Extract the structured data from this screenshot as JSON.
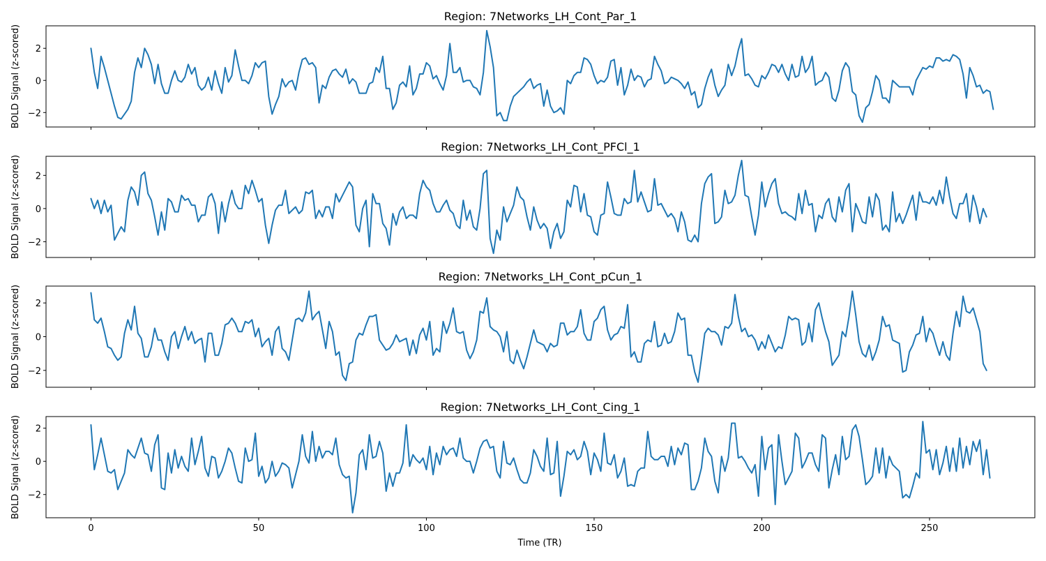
{
  "chart_data": {
    "type": "line",
    "xlabel": "Time (TR)",
    "x_ticks": [
      0,
      50,
      100,
      150,
      200,
      250
    ],
    "xlim": [
      -13.4,
      281.4
    ],
    "color": "#1f77b4",
    "panels": [
      {
        "title": "Region: 7Networks_LH_Cont_Par_1",
        "ylabel": "BOLD Signal (z-scored)",
        "ylim": [
          -2.9,
          3.4
        ],
        "y_ticks": [
          -2,
          0,
          2
        ],
        "y_tick_labels": [
          "−2",
          "0",
          "2"
        ],
        "values": [
          2.0,
          0.5,
          -0.5,
          1.5,
          0.8,
          0.0,
          -0.8,
          -1.6,
          -2.3,
          -2.4,
          -2.1,
          -1.8,
          -1.3,
          0.5,
          1.4,
          0.8,
          2.0,
          1.6,
          1.0,
          -0.2,
          1.0,
          -0.2,
          -0.8,
          -0.8,
          0.0,
          0.6,
          0.0,
          -0.1,
          0.2,
          1.0,
          0.4,
          0.8,
          -0.3,
          -0.6,
          -0.4,
          0.2,
          -0.6,
          0.6,
          -0.2,
          -0.8,
          0.8,
          -0.1,
          0.3,
          1.9,
          0.9,
          0.0,
          0.0,
          -0.2,
          0.3,
          1.1,
          0.8,
          1.1,
          1.2,
          -1.0,
          -2.1,
          -1.5,
          -1.0,
          0.1,
          -0.4,
          -0.1,
          0.0,
          -0.6,
          0.5,
          1.3,
          1.4,
          1.0,
          1.1,
          0.8,
          -1.4,
          -0.3,
          -0.5,
          0.2,
          0.6,
          0.7,
          0.4,
          0.2,
          0.7,
          -0.2,
          0.1,
          -0.1,
          -0.8,
          -0.8,
          -0.8,
          -0.2,
          -0.1,
          0.8,
          0.5,
          1.5,
          -0.5,
          -0.5,
          -1.8,
          -1.4,
          -0.3,
          -0.1,
          -0.4,
          0.9,
          -0.9,
          -0.5,
          0.4,
          0.4,
          1.1,
          0.9,
          0.1,
          0.3,
          -0.2,
          -0.6,
          0.3,
          2.3,
          0.5,
          0.5,
          0.8,
          -0.1,
          0.0,
          0.0,
          -0.4,
          -0.5,
          -0.9,
          0.5,
          3.1,
          2.1,
          0.8,
          -2.2,
          -2.0,
          -2.5,
          -2.5,
          -1.6,
          -1.0,
          -0.8,
          -0.6,
          -0.4,
          -0.1,
          0.1,
          -0.5,
          -0.3,
          -0.2,
          -1.6,
          -0.6,
          -1.6,
          -2.0,
          -1.9,
          -1.7,
          -2.1,
          0.0,
          -0.2,
          0.3,
          0.5,
          0.5,
          1.4,
          1.3,
          1.0,
          0.3,
          -0.2,
          0.0,
          -0.1,
          0.2,
          1.2,
          1.3,
          -0.3,
          0.8,
          -0.9,
          -0.3,
          0.7,
          0.0,
          0.3,
          0.2,
          -0.4,
          0.0,
          0.1,
          1.5,
          1.0,
          0.6,
          -0.2,
          -0.1,
          0.2,
          0.1,
          0.0,
          -0.2,
          -0.5,
          -0.1,
          -0.9,
          -0.7,
          -1.7,
          -1.5,
          -0.5,
          0.2,
          0.7,
          -0.3,
          -1.0,
          -0.6,
          -0.3,
          1.0,
          0.3,
          0.9,
          1.9,
          2.6,
          0.3,
          0.4,
          0.1,
          -0.3,
          -0.4,
          0.3,
          0.1,
          0.5,
          1.0,
          0.9,
          0.5,
          1.0,
          0.4,
          0.0,
          1.0,
          0.2,
          0.3,
          1.5,
          0.5,
          0.8,
          1.5,
          -0.3,
          -0.1,
          0.0,
          0.5,
          0.2,
          -1.1,
          -1.3,
          -0.6,
          0.6,
          1.1,
          0.8,
          -0.7,
          -0.9,
          -2.2,
          -2.6,
          -1.7,
          -1.5,
          -0.7,
          0.3,
          0.0,
          -1.1,
          -1.1,
          -1.4,
          0.0,
          -0.2,
          -0.4,
          -0.4,
          -0.4,
          -0.4,
          -0.9,
          0.0,
          0.4,
          0.8,
          0.7,
          0.9,
          0.8,
          1.4,
          1.4,
          1.2,
          1.3,
          1.2,
          1.6,
          1.5,
          1.3,
          0.4,
          -1.1,
          0.8,
          0.3,
          -0.4,
          -0.3,
          -0.8,
          -0.6,
          -0.7,
          -1.8
        ]
      },
      {
        "title": "Region: 7Networks_LH_Cont_PFCl_1",
        "ylabel": "BOLD Signal (z-scored)",
        "ylim": [
          -2.95,
          3.15
        ],
        "y_ticks": [
          -2,
          0,
          2
        ],
        "y_tick_labels": [
          "−2",
          "0",
          "2"
        ],
        "values": [
          0.6,
          0.0,
          0.5,
          -0.3,
          0.5,
          -0.2,
          0.2,
          -1.9,
          -1.5,
          -1.1,
          -1.4,
          0.5,
          1.3,
          1.0,
          0.2,
          2.0,
          2.2,
          0.9,
          0.5,
          -0.5,
          -1.6,
          -0.2,
          -1.3,
          0.6,
          0.4,
          -0.2,
          -0.2,
          0.8,
          0.5,
          0.6,
          0.2,
          0.2,
          -0.8,
          -0.4,
          -0.4,
          0.7,
          0.9,
          0.3,
          -1.5,
          0.4,
          -0.8,
          0.3,
          1.1,
          0.3,
          0.0,
          0.0,
          1.4,
          0.9,
          1.7,
          1.1,
          0.4,
          0.6,
          -1.0,
          -2.1,
          -1.0,
          -0.1,
          0.2,
          0.2,
          1.1,
          -0.3,
          -0.1,
          0.1,
          -0.3,
          -0.1,
          1.0,
          0.9,
          1.1,
          -0.6,
          -0.1,
          -0.5,
          0.1,
          0.1,
          -0.6,
          0.9,
          0.4,
          0.8,
          1.2,
          1.6,
          1.3,
          -1.0,
          -1.4,
          0.0,
          0.5,
          -2.3,
          0.9,
          0.3,
          0.3,
          -0.9,
          -1.2,
          -2.2,
          -0.3,
          -1.0,
          -0.2,
          0.1,
          -0.6,
          -0.4,
          -0.4,
          -0.6,
          0.9,
          1.7,
          1.3,
          1.1,
          0.3,
          -0.2,
          -0.2,
          0.2,
          0.5,
          -0.1,
          -0.3,
          -1.0,
          -1.2,
          0.5,
          -0.7,
          -0.1,
          -1.1,
          -1.3,
          0.0,
          2.1,
          2.3,
          -1.8,
          -2.7,
          -1.3,
          -1.9,
          0.1,
          -0.8,
          -0.3,
          0.2,
          1.3,
          0.7,
          0.5,
          -0.5,
          -1.3,
          0.1,
          -0.7,
          -1.2,
          -0.9,
          -1.2,
          -2.4,
          -1.4,
          -0.9,
          -1.8,
          -1.4,
          0.5,
          0.1,
          1.4,
          1.3,
          -0.2,
          0.9,
          -0.4,
          -0.5,
          -1.4,
          -1.6,
          -0.4,
          -0.3,
          1.6,
          0.7,
          -0.3,
          -0.4,
          -0.4,
          0.6,
          0.3,
          0.4,
          2.3,
          0.4,
          1.0,
          0.4,
          -0.2,
          -0.1,
          1.8,
          0.2,
          0.3,
          -0.1,
          -0.5,
          -0.3,
          -0.6,
          -1.4,
          -0.2,
          -0.8,
          -1.9,
          -2.0,
          -1.6,
          -2.0,
          0.3,
          1.5,
          1.9,
          2.1,
          -0.9,
          -0.8,
          -0.5,
          1.1,
          0.3,
          0.4,
          0.8,
          2.0,
          2.9,
          0.8,
          0.7,
          -0.5,
          -1.6,
          -0.4,
          1.6,
          0.1,
          0.9,
          1.5,
          1.8,
          0.3,
          -0.3,
          -0.2,
          -0.4,
          -0.5,
          -0.7,
          0.9,
          -0.3,
          1.1,
          0.2,
          0.3,
          -1.4,
          -0.4,
          -0.6,
          0.3,
          0.6,
          -0.5,
          -0.8,
          0.7,
          -0.2,
          1.1,
          1.5,
          -1.4,
          0.3,
          -0.2,
          -0.8,
          -0.9,
          0.7,
          -0.5,
          0.9,
          0.5,
          -1.3,
          -1.0,
          -1.4,
          1.0,
          -0.8,
          -0.3,
          -0.9,
          -0.4,
          0.2,
          0.8,
          -0.7,
          1.0,
          0.4,
          0.4,
          0.3,
          0.7,
          0.2,
          1.1,
          0.3,
          1.9,
          0.7,
          -0.3,
          -0.6,
          0.3,
          0.3,
          0.9,
          -0.8,
          0.8,
          0.1,
          -0.9,
          0.0,
          -0.5
        ]
      },
      {
        "title": "Region: 7Networks_LH_Cont_pCun_1",
        "ylabel": "BOLD Signal (z-scored)",
        "ylim": [
          -3.0,
          3.0
        ],
        "y_ticks": [
          -2,
          0,
          2
        ],
        "y_tick_labels": [
          "−2",
          "0",
          "2"
        ],
        "values": [
          2.6,
          1.0,
          0.8,
          1.1,
          0.3,
          -0.6,
          -0.7,
          -1.1,
          -1.4,
          -1.2,
          0.2,
          1.0,
          0.4,
          1.8,
          0.2,
          -0.1,
          -1.2,
          -1.2,
          -0.6,
          0.5,
          -0.2,
          -0.2,
          -0.9,
          -1.4,
          0.0,
          0.3,
          -0.7,
          0.0,
          0.6,
          -0.2,
          0.3,
          -0.4,
          -0.2,
          -0.1,
          -1.5,
          0.2,
          0.2,
          -1.1,
          -1.1,
          -0.4,
          0.7,
          0.8,
          1.1,
          0.8,
          0.3,
          0.3,
          0.9,
          0.8,
          1.0,
          0.0,
          0.5,
          -0.6,
          -0.3,
          -0.1,
          -1.1,
          0.3,
          0.6,
          -0.7,
          -0.9,
          -1.4,
          -0.2,
          1.0,
          1.1,
          0.9,
          1.4,
          2.7,
          1.0,
          1.3,
          1.5,
          0.4,
          -0.7,
          0.9,
          0.3,
          -1.1,
          -0.9,
          -2.3,
          -2.6,
          -1.6,
          -1.5,
          -0.2,
          0.2,
          0.1,
          0.7,
          1.2,
          1.2,
          1.3,
          -0.2,
          -0.5,
          -0.8,
          -0.7,
          -0.4,
          0.1,
          -0.3,
          -0.2,
          -0.1,
          -1.1,
          -0.2,
          -1.0,
          0.1,
          0.5,
          -0.2,
          0.9,
          -1.1,
          -0.7,
          -0.9,
          0.9,
          0.2,
          0.8,
          1.7,
          0.3,
          0.2,
          0.3,
          -0.8,
          -1.3,
          -0.9,
          -0.2,
          1.5,
          1.4,
          2.3,
          0.6,
          0.4,
          0.3,
          0.0,
          -0.9,
          0.3,
          -1.4,
          -1.6,
          -0.8,
          -1.4,
          -1.9,
          -1.2,
          -0.4,
          0.4,
          -0.3,
          -0.4,
          -0.5,
          -0.9,
          -0.4,
          -0.6,
          -0.5,
          0.8,
          0.8,
          0.1,
          0.3,
          0.3,
          0.6,
          1.6,
          0.2,
          -0.2,
          -0.2,
          0.9,
          1.1,
          1.6,
          1.8,
          0.4,
          -0.2,
          0.1,
          0.2,
          0.6,
          0.5,
          1.9,
          -1.2,
          -0.9,
          -1.5,
          -1.5,
          -0.4,
          -0.2,
          -0.3,
          0.9,
          -0.6,
          -0.5,
          0.2,
          -0.4,
          -0.3,
          0.3,
          1.4,
          1.0,
          1.1,
          -1.1,
          -1.1,
          -2.1,
          -2.7,
          -1.3,
          0.2,
          0.5,
          0.3,
          0.3,
          0.1,
          -0.5,
          0.6,
          0.5,
          0.8,
          2.5,
          1.2,
          0.3,
          0.5,
          0.0,
          0.1,
          -0.2,
          -0.8,
          -0.3,
          -0.7,
          0.1,
          -0.4,
          -0.9,
          -0.6,
          -0.7,
          0.1,
          1.2,
          1.0,
          1.1,
          1.0,
          -0.5,
          -0.3,
          0.8,
          -0.3,
          1.6,
          2.0,
          1.1,
          0.3,
          -0.3,
          -1.7,
          -1.4,
          -1.1,
          0.3,
          0.0,
          1.2,
          2.7,
          1.3,
          -0.3,
          -1.0,
          -1.2,
          -0.5,
          -1.4,
          -0.9,
          -0.2,
          1.2,
          0.6,
          0.7,
          -0.2,
          -0.3,
          -0.4,
          -2.1,
          -2.0,
          -0.9,
          -0.5,
          0.1,
          0.2,
          1.2,
          -0.3,
          0.5,
          0.2,
          -0.5,
          -1.1,
          -0.3,
          -1.1,
          -1.4,
          0.2,
          1.5,
          0.6,
          2.4,
          1.5,
          1.4,
          1.7,
          1.0,
          0.3,
          -1.6,
          -2.0
        ]
      },
      {
        "title": "Region: 7Networks_LH_Cont_Cing_1",
        "ylabel": "BOLD Signal (z-scored)",
        "ylim": [
          -3.4,
          2.7
        ],
        "y_ticks": [
          -2,
          0,
          2
        ],
        "y_tick_labels": [
          "−2",
          "0",
          "2"
        ],
        "values": [
          2.2,
          -0.5,
          0.4,
          1.4,
          0.4,
          -0.6,
          -0.7,
          -0.5,
          -1.7,
          -1.2,
          -0.7,
          0.7,
          0.4,
          0.2,
          0.8,
          1.4,
          0.5,
          0.4,
          -0.6,
          1.0,
          1.6,
          -1.6,
          -1.7,
          0.5,
          -0.7,
          0.7,
          -0.4,
          0.3,
          -0.3,
          -0.6,
          1.4,
          -0.2,
          0.6,
          1.5,
          -0.4,
          -0.9,
          0.3,
          0.2,
          -1.0,
          -0.6,
          0.0,
          0.8,
          0.5,
          -0.4,
          -1.2,
          -1.3,
          0.8,
          0.0,
          0.1,
          1.7,
          -0.9,
          -0.3,
          -1.3,
          -1.0,
          0.0,
          -0.9,
          -0.6,
          -0.1,
          -0.2,
          -0.4,
          -1.6,
          -0.8,
          0.0,
          1.6,
          0.3,
          -0.1,
          1.8,
          0.0,
          0.9,
          0.2,
          0.6,
          0.6,
          0.4,
          1.4,
          -0.2,
          -0.8,
          -1.0,
          -0.9,
          -3.1,
          -1.9,
          0.4,
          0.7,
          -0.5,
          1.6,
          0.2,
          0.3,
          1.2,
          0.5,
          -1.8,
          -0.7,
          -1.5,
          -0.7,
          -0.7,
          -0.1,
          2.2,
          -0.3,
          0.4,
          0.1,
          -0.1,
          0.2,
          -0.5,
          0.9,
          -0.8,
          0.5,
          -0.2,
          0.9,
          0.4,
          0.7,
          0.8,
          0.3,
          1.4,
          0.2,
          0.0,
          0.0,
          -0.7,
          0.0,
          0.8,
          1.2,
          1.3,
          0.8,
          0.9,
          -0.6,
          -1.0,
          1.2,
          -0.1,
          -0.2,
          0.2,
          -0.5,
          -1.1,
          -1.3,
          -1.3,
          -0.7,
          0.7,
          0.3,
          -0.3,
          -0.6,
          1.4,
          -0.8,
          -0.7,
          1.2,
          -2.1,
          -0.9,
          0.6,
          0.4,
          0.7,
          0.1,
          0.3,
          1.2,
          0.6,
          -0.8,
          0.5,
          0.1,
          -0.6,
          1.7,
          -0.1,
          -0.2,
          0.4,
          -1.0,
          -0.6,
          0.2,
          -1.5,
          -1.4,
          -1.5,
          -0.6,
          -0.4,
          -0.4,
          1.8,
          0.3,
          0.1,
          0.1,
          0.3,
          0.3,
          -0.3,
          0.9,
          -0.2,
          0.8,
          0.4,
          1.1,
          1.0,
          -1.7,
          -1.7,
          -1.2,
          -0.4,
          1.4,
          0.6,
          0.3,
          -1.2,
          -1.9,
          0.3,
          -0.6,
          0.2,
          2.3,
          2.3,
          0.2,
          0.3,
          0.0,
          -0.4,
          -0.7,
          -0.2,
          -2.1,
          1.5,
          -0.5,
          0.8,
          1.0,
          -2.6,
          1.6,
          0.0,
          -1.4,
          -1.0,
          -0.6,
          1.7,
          1.4,
          -0.4,
          0.0,
          0.5,
          0.5,
          -0.2,
          -0.6,
          1.6,
          1.4,
          -1.6,
          -0.5,
          0.4,
          -0.8,
          1.5,
          0.1,
          0.3,
          1.9,
          2.2,
          1.5,
          0.1,
          -1.4,
          -1.2,
          -0.9,
          0.8,
          -0.7,
          0.8,
          -1.0,
          0.3,
          -0.2,
          -0.4,
          -0.6,
          -2.2,
          -2.0,
          -2.2,
          -1.5,
          -0.7,
          -1.0,
          2.4,
          0.5,
          0.7,
          -0.5,
          0.7,
          -0.8,
          -0.1,
          0.9,
          -0.6,
          0.8,
          -0.6,
          1.4,
          -0.4,
          0.9,
          -0.2,
          1.2,
          0.6,
          1.3,
          -0.8,
          0.7,
          -1.0
        ]
      }
    ]
  }
}
